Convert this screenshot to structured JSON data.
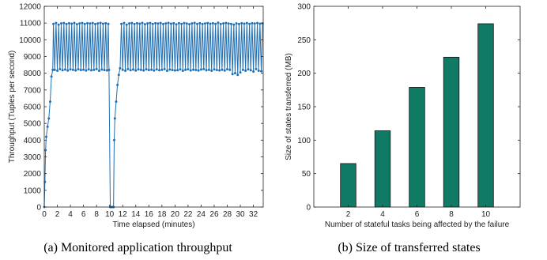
{
  "chart_data": [
    {
      "type": "line",
      "caption": "(a) Monitored application throughput",
      "xlabel": "Time elapsed (minutes)",
      "ylabel": "Throughput (Tuples per second)",
      "color": "#1f6fb4",
      "xlim": [
        0,
        33.5
      ],
      "xticks": [
        0,
        2,
        4,
        6,
        8,
        10,
        12,
        14,
        16,
        18,
        20,
        22,
        24,
        26,
        28,
        30,
        32
      ],
      "ylim": [
        0,
        12000
      ],
      "yticks": [
        0,
        1000,
        2000,
        3000,
        4000,
        5000,
        6000,
        7000,
        8000,
        9000,
        10000,
        11000,
        12000
      ],
      "x": [
        0,
        0.1,
        0.2,
        0.3,
        0.5,
        0.7,
        0.9,
        1.1,
        1.3,
        1.4,
        1.6,
        1.8,
        2,
        2.2,
        2.4,
        2.6,
        2.8,
        3,
        3.2,
        3.4,
        3.6,
        3.8,
        4,
        4.2,
        4.4,
        4.6,
        4.8,
        5,
        5.2,
        5.4,
        5.6,
        5.8,
        6,
        6.2,
        6.4,
        6.6,
        6.8,
        7,
        7.2,
        7.4,
        7.6,
        7.8,
        8,
        8.2,
        8.4,
        8.6,
        8.8,
        9,
        9.2,
        9.4,
        9.6,
        9.8,
        9.9,
        10.1,
        10.3,
        10.5,
        10.6,
        10.7,
        10.8,
        11,
        11.2,
        11.4,
        11.6,
        11.8,
        12,
        12.2,
        12.4,
        12.6,
        12.8,
        13,
        13.2,
        13.4,
        13.6,
        13.8,
        14,
        14.2,
        14.4,
        14.6,
        14.8,
        15,
        15.2,
        15.4,
        15.6,
        15.8,
        16,
        16.2,
        16.4,
        16.6,
        16.8,
        17,
        17.2,
        17.4,
        17.6,
        17.8,
        18,
        18.2,
        18.4,
        18.6,
        18.8,
        19,
        19.2,
        19.4,
        19.6,
        19.8,
        20,
        20.2,
        20.4,
        20.6,
        20.8,
        21,
        21.2,
        21.4,
        21.6,
        21.8,
        22,
        22.2,
        22.4,
        22.6,
        22.8,
        23,
        23.2,
        23.4,
        23.6,
        23.8,
        24,
        24.2,
        24.4,
        24.6,
        24.8,
        25,
        25.2,
        25.4,
        25.6,
        25.8,
        26,
        26.2,
        26.4,
        26.6,
        26.8,
        27,
        27.2,
        27.4,
        27.6,
        27.8,
        28,
        28.2,
        28.4,
        28.6,
        28.8,
        29,
        29.2,
        29.4,
        29.6,
        29.8,
        30,
        30.2,
        30.4,
        30.6,
        30.8,
        31,
        31.2,
        31.4,
        31.6,
        31.8,
        32,
        32.2,
        32.4,
        32.6,
        32.8,
        33,
        33.2,
        33.4
      ],
      "values": [
        0,
        1500,
        3400,
        4200,
        4800,
        5300,
        6300,
        7800,
        8200,
        10950,
        8200,
        11000,
        8150,
        10900,
        8250,
        10980,
        8180,
        11000,
        8220,
        10940,
        8160,
        10990,
        8230,
        10960,
        8200,
        11010,
        8170,
        10930,
        8240,
        10980,
        8190,
        11000,
        8210,
        10950,
        8160,
        10990,
        8230,
        10970,
        8180,
        11000,
        8200,
        10940,
        8250,
        10980,
        8150,
        11010,
        8220,
        10960,
        8190,
        10990,
        8170,
        10950,
        8200,
        0,
        0,
        0,
        0,
        4000,
        5300,
        6300,
        7300,
        7900,
        8300,
        10950,
        8200,
        11000,
        8150,
        10900,
        8250,
        10980,
        8180,
        11000,
        8220,
        10940,
        8160,
        10990,
        8230,
        10960,
        8200,
        11010,
        8170,
        10930,
        8240,
        10980,
        8190,
        11000,
        8210,
        10950,
        8160,
        10990,
        8230,
        10970,
        8180,
        11000,
        8200,
        10940,
        8250,
        10980,
        8150,
        11010,
        8220,
        10960,
        8190,
        10990,
        8170,
        10920,
        8180,
        10990,
        8230,
        10950,
        8150,
        11000,
        8200,
        10970,
        8240,
        10930,
        8170,
        10980,
        8210,
        11010,
        8190,
        10950,
        8160,
        10990,
        8220,
        10940,
        8250,
        10980,
        8180,
        11000,
        8200,
        10960,
        8150,
        10990,
        8230,
        10950,
        8190,
        11020,
        8170,
        10940,
        8210,
        10980,
        8160,
        11000,
        8240,
        10970,
        8200,
        10950,
        7950,
        10900,
        8000,
        10980,
        7900,
        10940,
        8050,
        10990,
        8200,
        10960,
        8150,
        11000,
        8230,
        10950,
        8180,
        10990,
        8100,
        10970,
        8250,
        11000,
        8150,
        10960,
        8120,
        10980
      ]
    },
    {
      "type": "bar",
      "caption": "(b) Size of transferred states",
      "xlabel": "Number of stateful tasks being affected by the failure",
      "ylabel": "Size of states transferred (MB)",
      "color": "#117a65",
      "x": [
        2,
        4,
        6,
        8,
        10
      ],
      "values": [
        65,
        114,
        179,
        224,
        274
      ],
      "xlim": [
        0,
        12
      ],
      "xticks": [
        2,
        4,
        6,
        8,
        10
      ],
      "ylim": [
        0,
        300
      ],
      "yticks": [
        0,
        50,
        100,
        150,
        200,
        250,
        300
      ]
    }
  ]
}
